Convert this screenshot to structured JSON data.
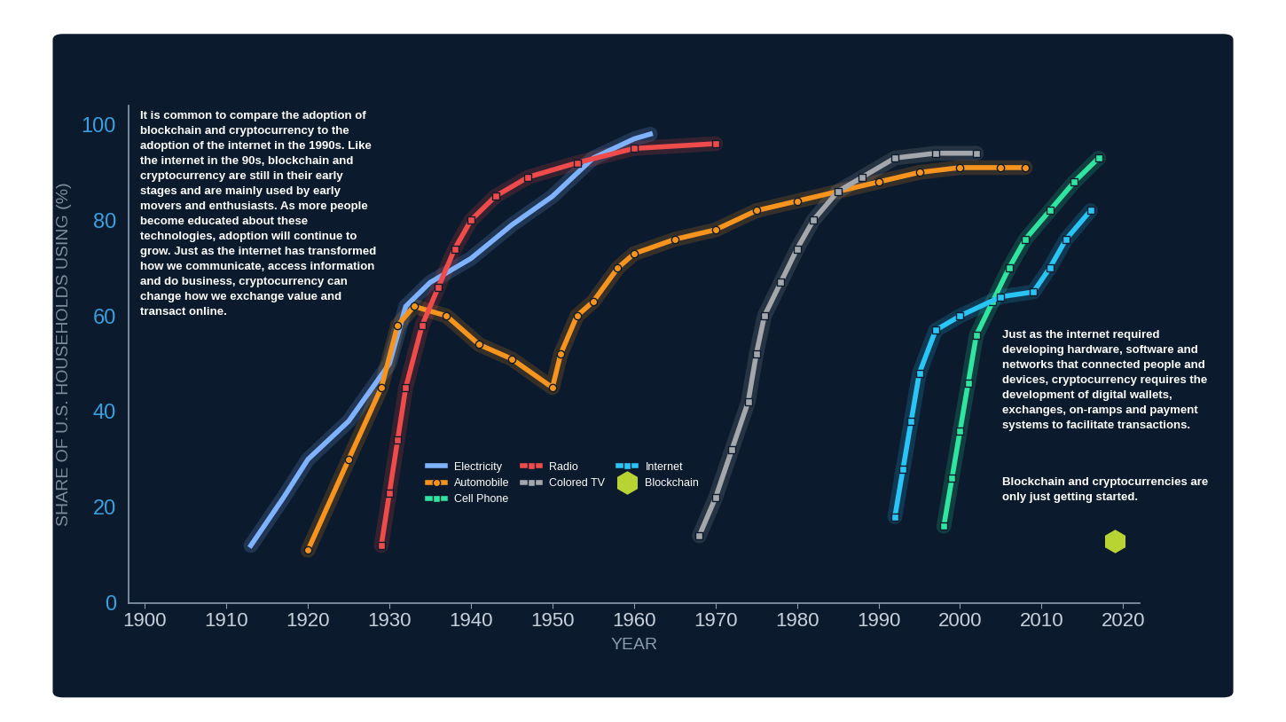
{
  "chart_data": {
    "type": "line",
    "xlabel": "YEAR",
    "ylabel": "SHARE OF U.S. HOUSEHOLDS USING (%)",
    "xlim": [
      1898,
      2022
    ],
    "ylim": [
      0,
      104
    ],
    "xticks": [
      1900,
      1910,
      1920,
      1930,
      1940,
      1950,
      1960,
      1970,
      1980,
      1990,
      2000,
      2010,
      2020
    ],
    "yticks": [
      0,
      20,
      40,
      60,
      80,
      100
    ],
    "grid": false,
    "legend": "center",
    "series": [
      {
        "name": "Electricity",
        "color": "#7fb2ff",
        "marker": "none",
        "line_style": "solid",
        "x": [
          1913,
          1917,
          1920,
          1925,
          1930,
          1932,
          1935,
          1940,
          1945,
          1950,
          1955,
          1960,
          1962
        ],
        "values": [
          12,
          22,
          30,
          38,
          50,
          62,
          67,
          72,
          79,
          85,
          93,
          97,
          98
        ]
      },
      {
        "name": "Automobile",
        "color": "#f7941d",
        "marker": "circle",
        "line_style": "solid",
        "x": [
          1920,
          1925,
          1929,
          1931,
          1933,
          1937,
          1941,
          1945,
          1950,
          1951,
          1953,
          1955,
          1958,
          1960,
          1965,
          1970,
          1975,
          1980,
          1985,
          1990,
          1995,
          2000,
          2005,
          2008
        ],
        "values": [
          11,
          30,
          45,
          58,
          62,
          60,
          54,
          51,
          45,
          52,
          60,
          63,
          70,
          73,
          76,
          78,
          82,
          84,
          86,
          88,
          90,
          91,
          91,
          91
        ]
      },
      {
        "name": "Cell Phone",
        "color": "#2ee6a0",
        "marker": "square",
        "line_style": "solid",
        "x": [
          1998,
          1999,
          2000,
          2001,
          2002,
          2004,
          2006,
          2008,
          2011,
          2014,
          2017
        ],
        "values": [
          16,
          26,
          36,
          46,
          56,
          63,
          70,
          76,
          82,
          88,
          93
        ]
      },
      {
        "name": "Radio",
        "color": "#ef4b4b",
        "marker": "square",
        "line_style": "solid",
        "x": [
          1929,
          1930,
          1931,
          1932,
          1934,
          1936,
          1938,
          1940,
          1943,
          1947,
          1953,
          1960,
          1970
        ],
        "values": [
          12,
          23,
          34,
          45,
          58,
          66,
          74,
          80,
          85,
          89,
          92,
          95,
          96
        ]
      },
      {
        "name": "Colored TV",
        "color": "#a4a8ad",
        "marker": "square",
        "line_style": "solid",
        "x": [
          1968,
          1970,
          1972,
          1974,
          1975,
          1976,
          1978,
          1980,
          1982,
          1985,
          1988,
          1992,
          1997,
          2002
        ],
        "values": [
          14,
          22,
          32,
          42,
          52,
          60,
          67,
          74,
          80,
          86,
          89,
          93,
          94,
          94
        ]
      },
      {
        "name": "Internet",
        "color": "#29c5f6",
        "marker": "square",
        "line_style": "solid",
        "x": [
          1992,
          1993,
          1994,
          1995,
          1997,
          2000,
          2005,
          2009,
          2011,
          2013,
          2016
        ],
        "values": [
          18,
          28,
          38,
          48,
          57,
          60,
          64,
          65,
          70,
          76,
          82
        ]
      },
      {
        "name": "Blockchain",
        "color": "#b8d432",
        "marker": "hexagon",
        "line_style": "none",
        "x": [
          2019
        ],
        "values": [
          13
        ]
      }
    ],
    "annotations": [
      {
        "text": "It is common to compare the adoption of\nblockchain and cryptocurrency to the\nadoption of the internet in the 1990s. Like\nthe internet in the 90s, blockchain and\ncryptocurrency are still in their early\nstages and are mainly used by early\nmovers and enthusiasts. As more people\nbecome educated about these\ntechnologies, adoption will continue to\ngrow. Just as the internet has transformed\nhow we communicate, access information\nand do business, cryptocurrency can\nchange how we exchange value and\ntransact online."
      },
      {
        "text": "Just as the internet required\ndeveloping hardware, software and\nnetworks that connected people and\ndevices, cryptocurrency requires the\ndevelopment of digital wallets,\nexchanges, on-ramps and payment\nsystems to facilitate transactions."
      },
      {
        "text": "Blockchain and cryptocurrencies are\nonly just getting started."
      }
    ]
  }
}
